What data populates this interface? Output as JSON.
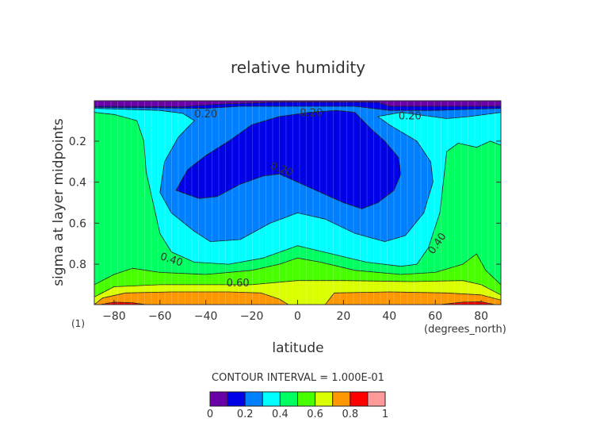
{
  "chart_data": {
    "type": "heatmap",
    "subtype": "filled-contour",
    "title": "relative humidity",
    "xlabel": "latitude",
    "xunits": "(degrees_north)",
    "ylabel": "sigma at layer midpoints",
    "yunits": "(1)",
    "xlim": [
      -88.6,
      88.6
    ],
    "ylim": [
      0.997,
      0.003
    ],
    "xticks": [
      -80,
      -60,
      -40,
      -20,
      0,
      20,
      40,
      60,
      80
    ],
    "yticks": [
      0.2,
      0.4,
      0.6,
      0.8
    ],
    "ytick_labels": [
      "0.2",
      "0.4",
      "0.6",
      "0.8"
    ],
    "contour_interval_label": "CONTOUR INTERVAL = 1.000E-01",
    "colorbar": {
      "levels": [
        0,
        0.1,
        0.2,
        0.3,
        0.4,
        0.5,
        0.6,
        0.7,
        0.8,
        0.9,
        1.0
      ],
      "colors": [
        "#6a00a8",
        "#0000e6",
        "#0080ff",
        "#00ffff",
        "#00ff60",
        "#48ff00",
        "#daff00",
        "#ff9800",
        "#ff0000",
        "#ff9a9a"
      ],
      "tick_labels": [
        "0",
        "0.2",
        "0.4",
        "0.6",
        "0.8",
        "1"
      ]
    },
    "regions": [
      {
        "level": "0.4-0.5",
        "color": "#00ff60",
        "points": [
          [
            -88.6,
            0.003
          ],
          [
            88.6,
            0.003
          ],
          [
            88.6,
            0.997
          ],
          [
            -88.6,
            0.997
          ]
        ]
      },
      {
        "level": "0.3-0.4",
        "color": "#00ffff",
        "points": [
          [
            -88.6,
            0.003
          ],
          [
            -88.6,
            0.06
          ],
          [
            -80,
            0.07
          ],
          [
            -70,
            0.1
          ],
          [
            -67,
            0.2
          ],
          [
            -66,
            0.35
          ],
          [
            -63,
            0.5
          ],
          [
            -60,
            0.65
          ],
          [
            -55,
            0.74
          ],
          [
            -45,
            0.79
          ],
          [
            -30,
            0.8
          ],
          [
            -15,
            0.77
          ],
          [
            0,
            0.71
          ],
          [
            15,
            0.75
          ],
          [
            30,
            0.79
          ],
          [
            45,
            0.81
          ],
          [
            52,
            0.8
          ],
          [
            57,
            0.72
          ],
          [
            62,
            0.55
          ],
          [
            65,
            0.25
          ],
          [
            70,
            0.21
          ],
          [
            78,
            0.23
          ],
          [
            84,
            0.2
          ],
          [
            88.6,
            0.22
          ],
          [
            88.6,
            0.003
          ]
        ]
      },
      {
        "level": "0.2-0.3",
        "color": "#0080ff",
        "points": [
          [
            -88.6,
            0.003
          ],
          [
            -88.6,
            0.04
          ],
          [
            -60,
            0.05
          ],
          [
            -50,
            0.065
          ],
          [
            -45,
            0.1
          ],
          [
            -52,
            0.18
          ],
          [
            -58,
            0.3
          ],
          [
            -60,
            0.45
          ],
          [
            -55,
            0.55
          ],
          [
            -45,
            0.64
          ],
          [
            -38,
            0.69
          ],
          [
            -25,
            0.68
          ],
          [
            -12,
            0.6
          ],
          [
            0,
            0.55
          ],
          [
            12,
            0.58
          ],
          [
            25,
            0.65
          ],
          [
            38,
            0.69
          ],
          [
            47,
            0.66
          ],
          [
            55,
            0.55
          ],
          [
            59,
            0.4
          ],
          [
            58,
            0.3
          ],
          [
            52,
            0.2
          ],
          [
            40,
            0.12
          ],
          [
            35,
            0.08
          ],
          [
            45,
            0.06
          ],
          [
            65,
            0.09
          ],
          [
            75,
            0.08
          ],
          [
            88.6,
            0.06
          ],
          [
            88.6,
            0.003
          ]
        ]
      },
      {
        "level": "0.1-0.2",
        "color": "#0000e6",
        "points": [
          [
            -53,
            0.44
          ],
          [
            -48,
            0.34
          ],
          [
            -40,
            0.27
          ],
          [
            -30,
            0.2
          ],
          [
            -20,
            0.12
          ],
          [
            -8,
            0.08
          ],
          [
            5,
            0.06
          ],
          [
            17,
            0.05
          ],
          [
            25,
            0.06
          ],
          [
            32,
            0.14
          ],
          [
            38,
            0.2
          ],
          [
            44,
            0.28
          ],
          [
            45,
            0.36
          ],
          [
            42,
            0.44
          ],
          [
            35,
            0.5
          ],
          [
            28,
            0.53
          ],
          [
            20,
            0.5
          ],
          [
            10,
            0.45
          ],
          [
            0,
            0.4
          ],
          [
            -8,
            0.36
          ],
          [
            -15,
            0.37
          ],
          [
            -25,
            0.41
          ],
          [
            -35,
            0.47
          ],
          [
            -43,
            0.48
          ]
        ]
      },
      {
        "level": "0.1-0.2",
        "color": "#0000e6",
        "points": [
          [
            -88.6,
            0.003
          ],
          [
            -88.6,
            0.035
          ],
          [
            -40,
            0.04
          ],
          [
            -25,
            0.03
          ],
          [
            25,
            0.03
          ],
          [
            40,
            0.05
          ],
          [
            60,
            0.05
          ],
          [
            88.6,
            0.04
          ],
          [
            88.6,
            0.003
          ]
        ]
      },
      {
        "level": "0.0-0.1",
        "color": "#6a00a8",
        "points": [
          [
            -88.6,
            0.003
          ],
          [
            -88.6,
            0.03
          ],
          [
            -50,
            0.032
          ],
          [
            -35,
            0.02
          ],
          [
            -10,
            0.01
          ],
          [
            35,
            0.01
          ],
          [
            40,
            0.03
          ],
          [
            88.6,
            0.03
          ],
          [
            88.6,
            0.003
          ]
        ]
      },
      {
        "level": "0.5-0.6",
        "color": "#48ff00",
        "points": [
          [
            -88.6,
            0.997
          ],
          [
            -88.6,
            0.9
          ],
          [
            -80,
            0.85
          ],
          [
            -72,
            0.82
          ],
          [
            -60,
            0.84
          ],
          [
            -40,
            0.85
          ],
          [
            -20,
            0.83
          ],
          [
            -8,
            0.8
          ],
          [
            0,
            0.77
          ],
          [
            10,
            0.79
          ],
          [
            25,
            0.83
          ],
          [
            45,
            0.85
          ],
          [
            60,
            0.84
          ],
          [
            72,
            0.8
          ],
          [
            78,
            0.75
          ],
          [
            82,
            0.83
          ],
          [
            88.6,
            0.9
          ],
          [
            88.6,
            0.997
          ]
        ]
      },
      {
        "level": "0.6-0.7",
        "color": "#daff00",
        "points": [
          [
            -88.6,
            0.997
          ],
          [
            -88.6,
            0.96
          ],
          [
            -80,
            0.91
          ],
          [
            -60,
            0.9
          ],
          [
            -40,
            0.9
          ],
          [
            -20,
            0.9
          ],
          [
            0,
            0.88
          ],
          [
            20,
            0.88
          ],
          [
            50,
            0.885
          ],
          [
            72,
            0.88
          ],
          [
            80,
            0.9
          ],
          [
            88.6,
            0.95
          ],
          [
            88.6,
            0.997
          ]
        ]
      },
      {
        "level": "0.7-0.8",
        "color": "#ff9800",
        "points": [
          [
            -88.6,
            0.997
          ],
          [
            -85,
            0.965
          ],
          [
            -75,
            0.94
          ],
          [
            -55,
            0.935
          ],
          [
            -30,
            0.935
          ],
          [
            -16,
            0.94
          ],
          [
            -8,
            0.97
          ],
          [
            -4,
            0.997
          ]
        ]
      },
      {
        "level": "0.7-0.8",
        "color": "#ff9800",
        "points": [
          [
            12,
            0.997
          ],
          [
            16,
            0.94
          ],
          [
            40,
            0.935
          ],
          [
            65,
            0.94
          ],
          [
            80,
            0.95
          ],
          [
            88.6,
            0.975
          ],
          [
            88.6,
            0.997
          ]
        ]
      },
      {
        "level": "0.8-0.9",
        "color": "#ff0000",
        "points": [
          [
            -86,
            0.997
          ],
          [
            -80,
            0.985
          ],
          [
            -72,
            0.988
          ],
          [
            -66,
            0.997
          ]
        ]
      },
      {
        "level": "0.8-0.9",
        "color": "#ff0000",
        "points": [
          [
            62,
            0.997
          ],
          [
            72,
            0.985
          ],
          [
            80,
            0.983
          ],
          [
            86,
            0.997
          ]
        ]
      }
    ],
    "contour_labels": [
      {
        "text": "0.20",
        "lat": -40,
        "sigma": 0.07,
        "angle": 0
      },
      {
        "text": "0.20",
        "lat": 6,
        "sigma": 0.065,
        "angle": 0
      },
      {
        "text": "0.20",
        "lat": 49,
        "sigma": 0.08,
        "angle": 0
      },
      {
        "text": "0.20",
        "lat": -7,
        "sigma": 0.34,
        "angle": 20
      },
      {
        "text": "0.40",
        "lat": -55,
        "sigma": 0.78,
        "angle": 18
      },
      {
        "text": "0.40",
        "lat": 61,
        "sigma": 0.7,
        "angle": -55
      },
      {
        "text": "0.60",
        "lat": -26,
        "sigma": 0.895,
        "angle": 0
      }
    ]
  }
}
